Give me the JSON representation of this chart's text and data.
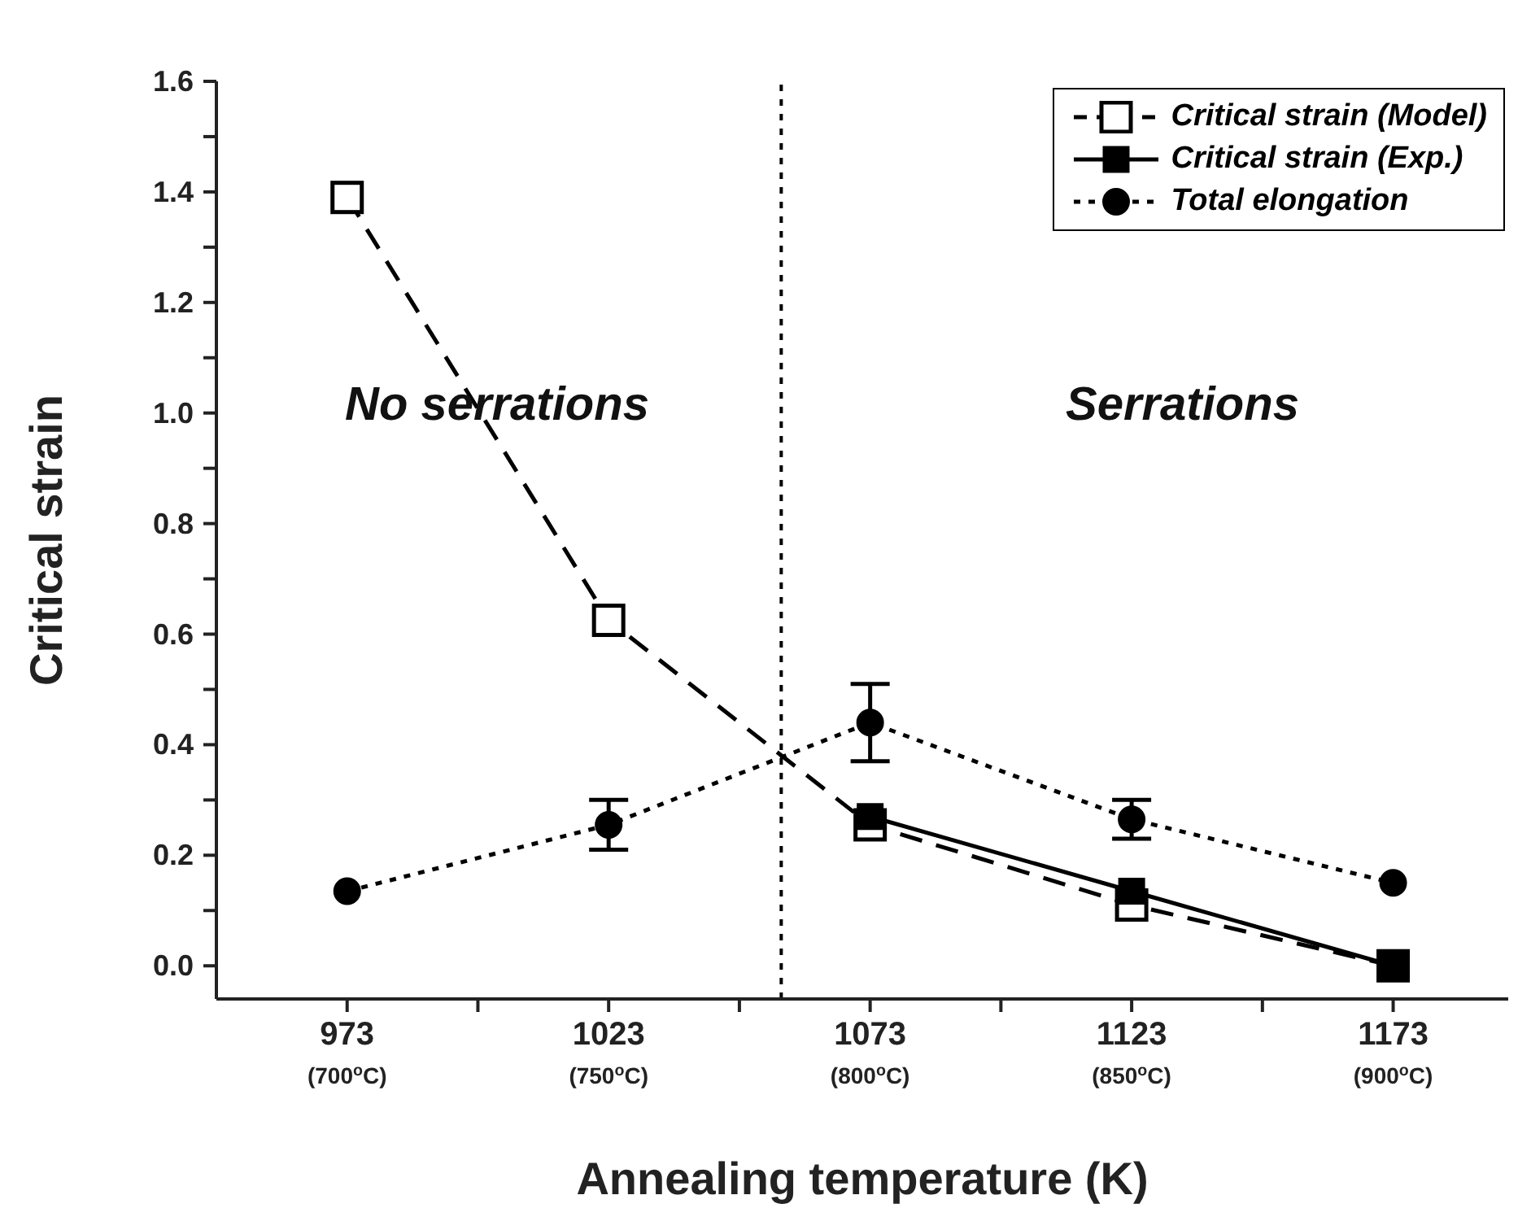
{
  "chart_data": {
    "type": "line",
    "xlabel": "Annealing temperature (K)",
    "ylabel": "Critical strain",
    "x": [
      973,
      1023,
      1073,
      1123,
      1173
    ],
    "series": [
      {
        "name": "Critical strain (Model)",
        "color": "#000000",
        "marker": "square",
        "line_style": "dashed",
        "values": [
          1.39,
          0.625,
          0.255,
          0.11,
          0.0
        ]
      },
      {
        "name": "Critical strain (Exp.)",
        "color": "#000000",
        "marker": "square",
        "line_style": "solid",
        "values": [
          null,
          null,
          0.27,
          0.135,
          0.0
        ]
      },
      {
        "name": "Total elongation",
        "color": "#000000",
        "marker": "circle",
        "line_style": "dotted",
        "values": [
          0.135,
          0.255,
          0.44,
          0.265,
          0.15
        ],
        "errors": [
          null,
          0.045,
          0.07,
          0.035,
          null
        ]
      }
    ],
    "xlim": [
      948,
      1195
    ],
    "xticks": [
      973,
      {
        "value": 998,
        "label": null
      },
      1023,
      {
        "value": 1048,
        "label": null
      },
      1073,
      {
        "value": 1098,
        "label": null
      },
      1123,
      {
        "value": 1148,
        "label": null
      },
      1173
    ],
    "x2lim": [
      675,
      922
    ],
    "x2ticks": [
      {
        "value": 700,
        "label": "(700$^{o}$C)"
      },
      {
        "value": 750,
        "label": "(750$^{o}$C)"
      },
      {
        "value": 800,
        "label": "(800$^{o}$C)"
      },
      {
        "value": 850,
        "label": "(850$^{o}$C)"
      },
      {
        "value": 900,
        "label": "(900$^{o}$C)"
      }
    ],
    "ylim": [
      -0.06,
      1.6
    ],
    "yticks": [
      {
        "value": 0,
        "label": "0.0"
      },
      {
        "value": 0.1,
        "label": null
      },
      {
        "value": 0.2,
        "label": "0.2"
      },
      {
        "value": 0.3,
        "label": null
      },
      {
        "value": 0.4,
        "label": "0.4"
      },
      {
        "value": 0.5,
        "label": null
      },
      {
        "value": 0.6,
        "label": "0.6"
      },
      {
        "value": 0.7,
        "label": null
      },
      {
        "value": 0.8,
        "label": "0.8"
      },
      {
        "value": 0.9,
        "label": null
      },
      {
        "value": 1.0,
        "label": "1.0"
      },
      {
        "value": 1.1,
        "label": null
      },
      {
        "value": 1.2,
        "label": "1.2"
      },
      {
        "value": 1.3,
        "label": null
      },
      {
        "value": 1.4,
        "label": "1.4"
      },
      {
        "value": 1.5,
        "label": null
      },
      {
        "value": 1.6,
        "label": "1.6"
      }
    ],
    "ref_lines": [
      {
        "axis": "x",
        "value": 1056,
        "line_style": "dotted"
      }
    ],
    "annotations": [
      "No serrations",
      "Serrations"
    ],
    "grid": false,
    "legend": "top right"
  }
}
